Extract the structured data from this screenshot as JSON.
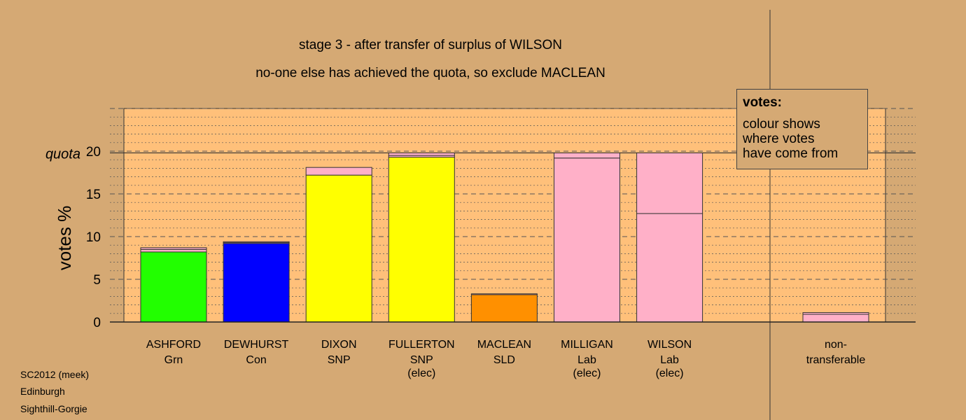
{
  "title_line1": "stage 3 - after transfer of surplus of WILSON",
  "title_line2": "no-one else has achieved the quota, so exclude MACLEAN",
  "legend": {
    "title": "votes:",
    "lines": [
      "colour shows",
      "where votes",
      "have come from"
    ]
  },
  "footer": [
    "SC2012 (meek)",
    "Edinburgh",
    "Sighthill-Gorgie"
  ],
  "colors": {
    "background": "#D5A974",
    "plot_area": "#FFC07A",
    "Grn": "#22FF00",
    "Con": "#0000FF",
    "SNP": "#FFFF00",
    "SLD": "#FF9000",
    "Lab": "#FFB0C8",
    "transfer_pink": "#FFB0C8"
  },
  "chart_data": {
    "type": "bar",
    "ylabel": "votes %",
    "quota_label": "quota",
    "quota": 19.8,
    "ylim": [
      0,
      25
    ],
    "yticks": [
      0,
      5,
      10,
      15,
      20
    ],
    "grid": "dashed major lines every 5, dotted minor lines every 1",
    "categories": [
      {
        "name": "ASHFORD",
        "party": "Grn",
        "elec": "",
        "color": "Grn",
        "segments": [
          8.2,
          0.3,
          0.2
        ]
      },
      {
        "name": "DEWHURST",
        "party": "Con",
        "elec": "",
        "color": "Con",
        "segments": [
          9.2,
          0.1,
          0.1
        ]
      },
      {
        "name": "DIXON",
        "party": "SNP",
        "elec": "",
        "color": "SNP",
        "segments": [
          17.2,
          0.9
        ]
      },
      {
        "name": "FULLERTON",
        "party": "SNP",
        "elec": "(elec)",
        "color": "SNP",
        "segments": [
          19.3,
          0.2,
          0.3
        ]
      },
      {
        "name": "MACLEAN",
        "party": "SLD",
        "elec": "",
        "color": "SLD",
        "segments": [
          3.2,
          0.1
        ]
      },
      {
        "name": "MILLIGAN",
        "party": "Lab",
        "elec": "(elec)",
        "color": "Lab",
        "segments": [
          19.2,
          0.6
        ]
      },
      {
        "name": "WILSON",
        "party": "Lab",
        "elec": "(elec)",
        "color": "Lab",
        "segments": [
          12.7,
          7.1
        ]
      }
    ],
    "nontransferable": {
      "label_line1": "non-",
      "label_line2": "transferable",
      "segments": [
        0.9,
        0.2
      ],
      "color": "transfer_pink"
    }
  }
}
